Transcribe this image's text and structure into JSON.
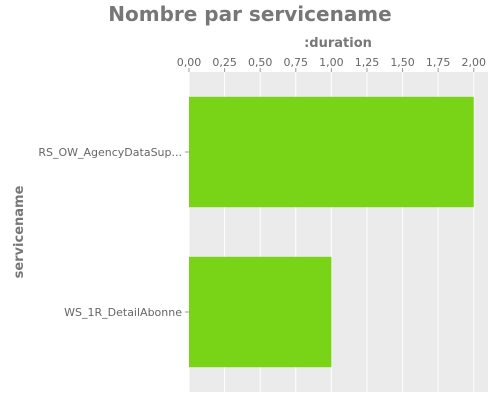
{
  "chart_data": {
    "type": "bar",
    "orientation": "horizontal",
    "title": "Nombre par servicename",
    "xlabel": ":duration",
    "ylabel": "servicename",
    "categories": [
      "RS_OW_AgencyDataSup...",
      "WS_1R_DetailAbonne"
    ],
    "values": [
      2.0,
      1.0
    ],
    "xlim": [
      0,
      2.1
    ],
    "ticks": [
      "0,00",
      "0,25",
      "0,50",
      "0,75",
      "1,00",
      "1,25",
      "1,50",
      "1,75",
      "2,00"
    ],
    "tick_values": [
      0,
      0.25,
      0.5,
      0.75,
      1.0,
      1.25,
      1.5,
      1.75,
      2.0
    ],
    "x_axis_position": "top",
    "grid": true,
    "colors": {
      "bar": "#79d317",
      "panel_background": "#ebebeb",
      "grid": "#ffffff",
      "text": "#777777"
    }
  }
}
